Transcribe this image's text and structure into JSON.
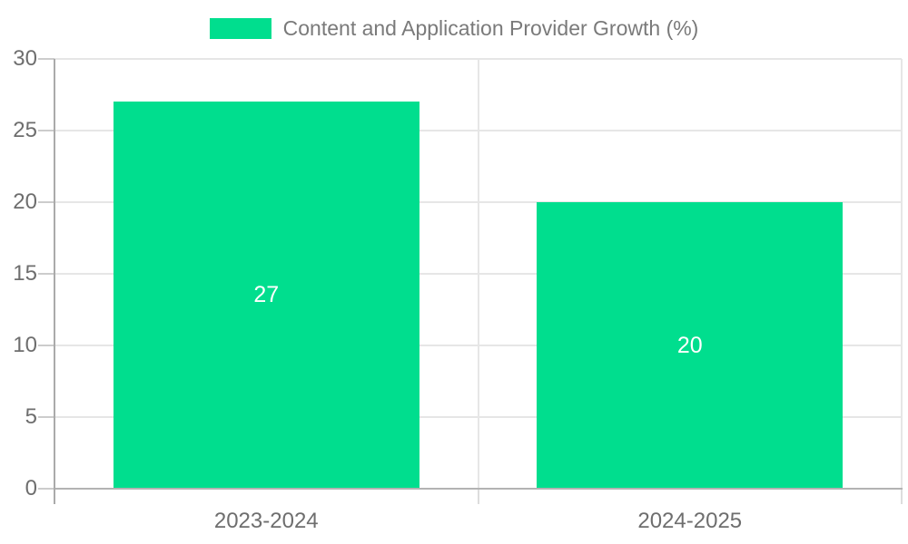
{
  "chart_data": {
    "type": "bar",
    "title": "",
    "legend_label": "Content and Application Provider Growth (%)",
    "legend_position": "top",
    "categories": [
      "2023-2024",
      "2024-2025"
    ],
    "values": [
      27,
      20
    ],
    "data_labels": [
      "27",
      "20"
    ],
    "series": [
      {
        "name": "Content and Application Provider Growth (%)",
        "values": [
          27,
          20
        ]
      }
    ],
    "xlabel": "",
    "ylabel": "",
    "ylim": [
      0,
      30
    ],
    "yticks": [
      0,
      5,
      10,
      15,
      20,
      25,
      30
    ],
    "grid": true,
    "colors": {
      "bar": "#00DE8E",
      "legend_text": "#7a7a7a",
      "axis_label": "#6e6e6e",
      "grid_line": "#e6e6e6",
      "tick_line": "#cccccc",
      "axis_line": "#aaaaaa",
      "baseline": "#b3b3b3",
      "data_label": "#ffffff",
      "background": "#ffffff"
    }
  }
}
